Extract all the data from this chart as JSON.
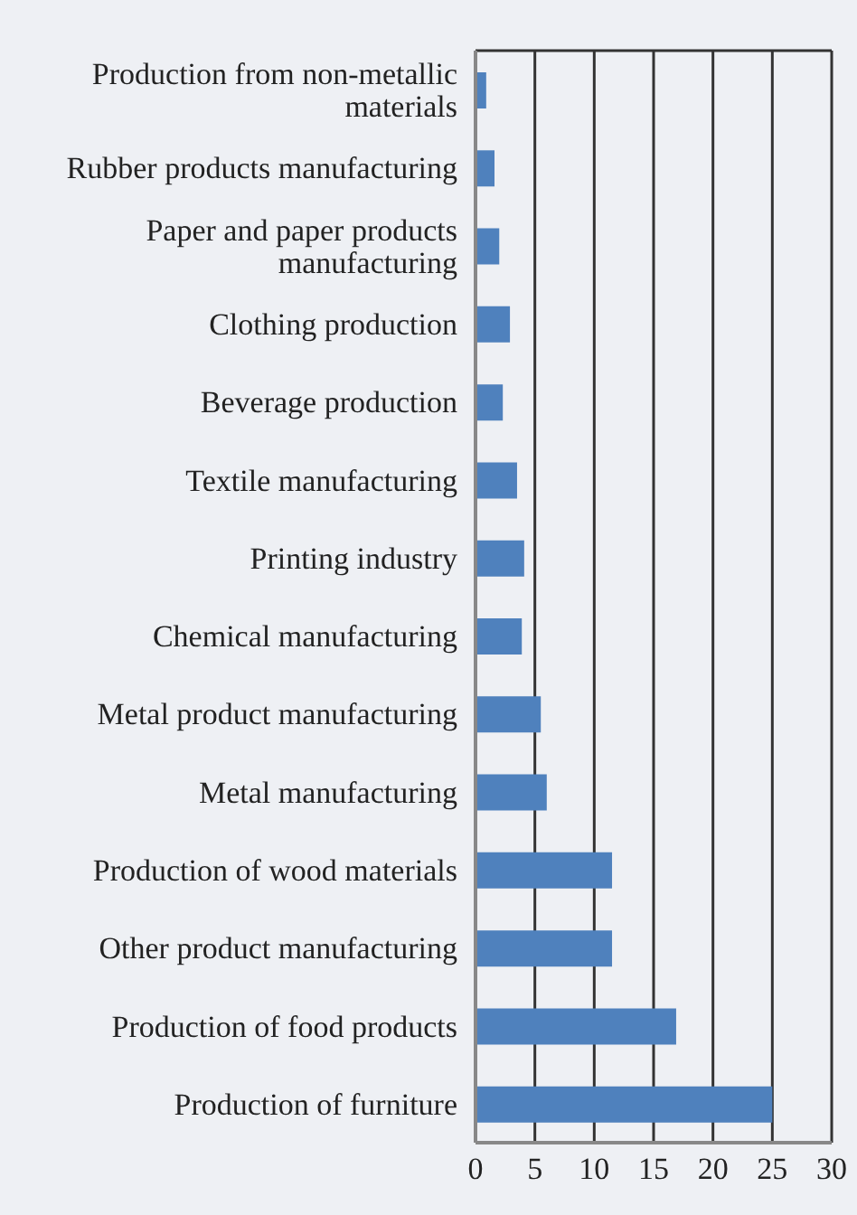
{
  "chart_data": {
    "type": "bar",
    "orientation": "horizontal",
    "categories": [
      "Production from non-metallic materials",
      "Rubber products manufacturing",
      "Paper and paper products manufacturing",
      "Clothing production",
      "Beverage production",
      "Textile manufacturing",
      "Printing industry",
      "Chemical manufacturing",
      "Metal product manufacturing",
      "Metal manufacturing",
      "Production of wood materials",
      "Other product manufacturing",
      "Production of food products",
      "Production of furniture"
    ],
    "values": [
      0.9,
      1.6,
      2.0,
      2.9,
      2.3,
      3.5,
      4.1,
      3.9,
      5.5,
      6.0,
      11.5,
      11.5,
      16.9,
      25.0
    ],
    "color": "#4f81bd",
    "xlim": [
      0,
      30
    ],
    "xticks": [
      0,
      5,
      10,
      15,
      20,
      25,
      30
    ],
    "grid": "x"
  }
}
